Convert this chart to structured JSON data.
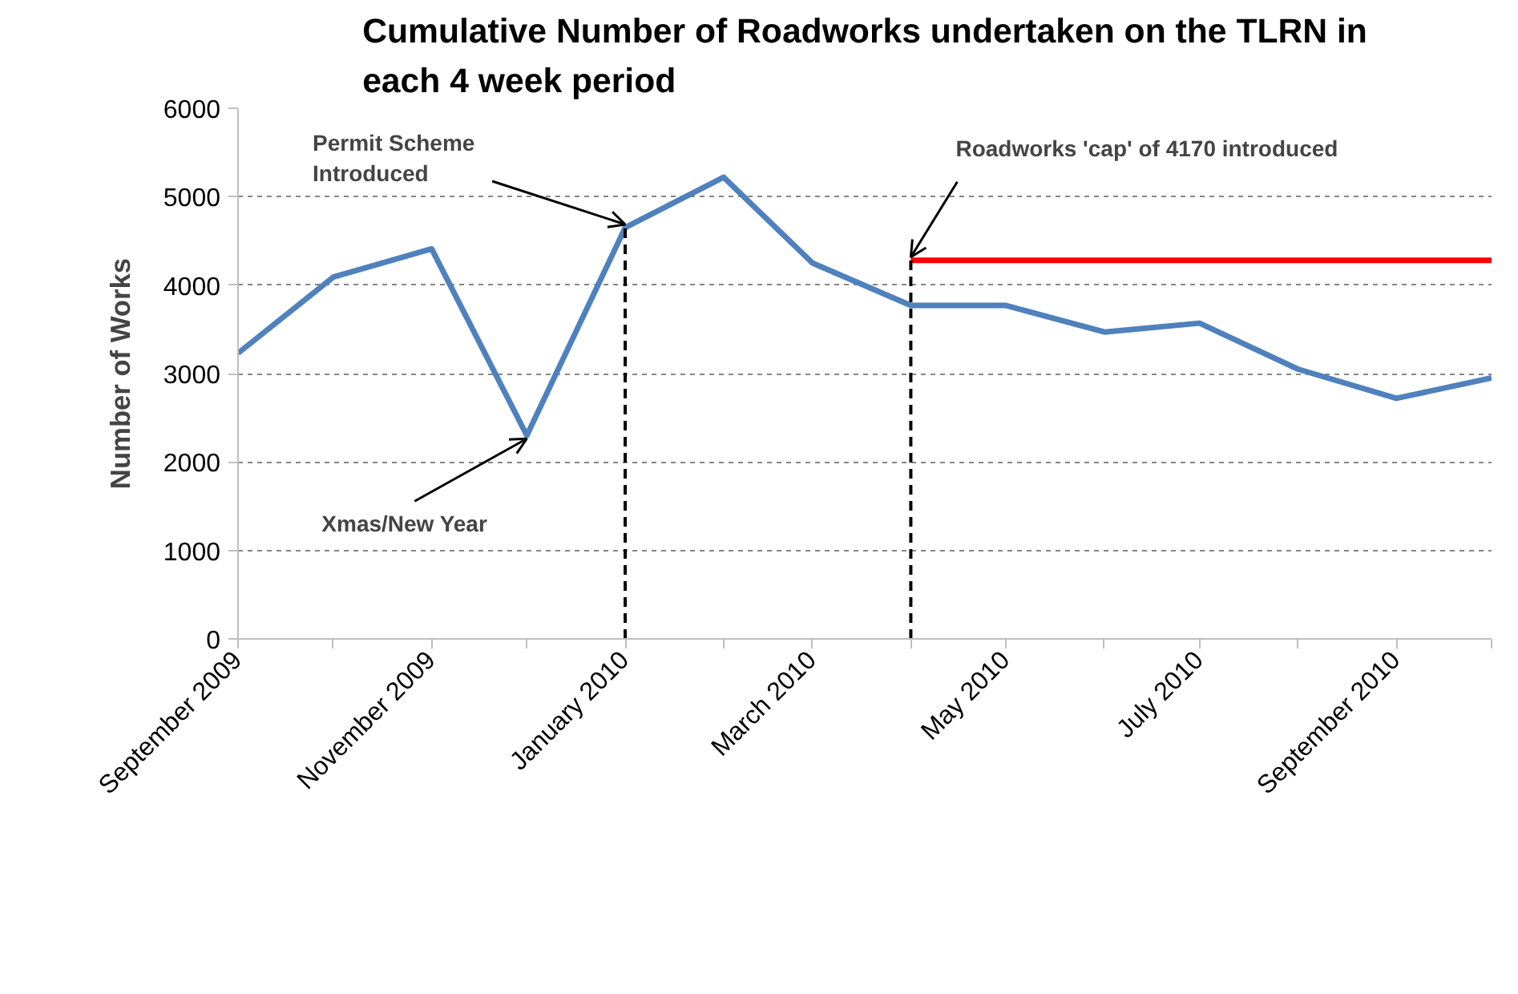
{
  "chart_data": {
    "type": "line",
    "title": "Cumulative Number of Roadworks undertaken on the TLRN in each 4 week period",
    "ylabel": "Number of Works",
    "x": [
      "2009-09",
      "2009-10",
      "2009-11",
      "2009-12",
      "2010-01",
      "2010-02",
      "2010-03",
      "2010-04",
      "2010-05",
      "2010-06",
      "2010-07",
      "2010-08",
      "2010-09",
      "2010-10"
    ],
    "series": [
      {
        "color": "#4f81bd",
        "values": [
          3230,
          4090,
          4410,
          2300,
          4650,
          5220,
          4250,
          3770,
          3770,
          3470,
          3570,
          3050,
          2720,
          2950
        ]
      },
      {
        "color": "#ff0000",
        "x": [
          "2010-04",
          "2010-10"
        ],
        "values": [
          4280,
          4280
        ]
      }
    ],
    "xlim": [
      "2009-09",
      "2010-10"
    ],
    "xticks": [
      {
        "value": "2009-09",
        "label": "September 2009"
      },
      {
        "value": "2009-10",
        "label": null
      },
      {
        "value": "2009-11",
        "label": "November 2009"
      },
      {
        "value": "2009-12",
        "label": null
      },
      {
        "value": "2010-01",
        "label": "January 2010"
      },
      {
        "value": "2010-02",
        "label": null
      },
      {
        "value": "2010-03",
        "label": "March 2010"
      },
      {
        "value": "2010-04",
        "label": null
      },
      {
        "value": "2010-05",
        "label": "May 2010"
      },
      {
        "value": "2010-06",
        "label": null
      },
      {
        "value": "2010-07",
        "label": "July 2010"
      },
      {
        "value": "2010-08",
        "label": null
      },
      {
        "value": "2010-09",
        "label": "September 2010"
      },
      {
        "value": "2010-10",
        "label": null
      }
    ],
    "ylim": [
      0,
      6000
    ],
    "yticks": [
      0,
      1000,
      2000,
      3000,
      4000,
      5000,
      6000
    ],
    "grid": "y",
    "marker": "none",
    "line_style": "solid",
    "ref_lines": [
      {
        "axis": "x",
        "value": "2010-01",
        "color": "#000000",
        "line_style": "dashed"
      },
      {
        "axis": "x",
        "value": "2010-04",
        "color": "#000000",
        "line_style": "dashed"
      }
    ],
    "annotations": [
      {
        "text": "Permit Scheme\nIntroduced",
        "x": "2010-01",
        "y": 4650
      },
      {
        "text": "Xmas/New Year",
        "x": "2009-12",
        "y": 2300
      },
      {
        "text": "Roadworks 'cap' of 4170 introduced",
        "x": "2010-04",
        "y": 4280
      }
    ]
  }
}
